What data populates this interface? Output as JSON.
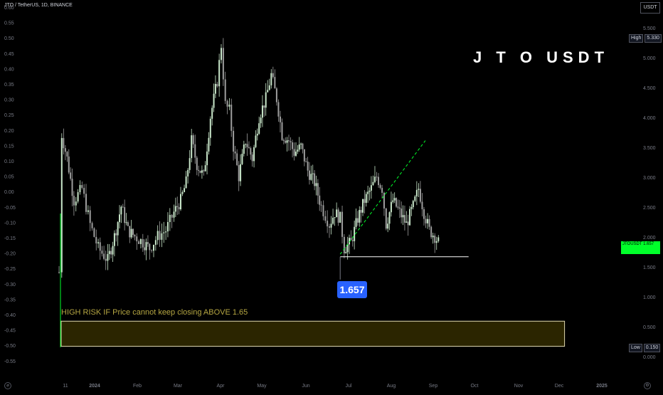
{
  "header": {
    "symbol_line": "JTO / TetherUS, 1D, BINANCE",
    "title": "J T O  USDT",
    "currency_box": "USDT"
  },
  "price_scale": {
    "high_label": "High",
    "high_value": "5.330",
    "low_label": "Low",
    "low_value": "0.150",
    "current_tag": "JTOUSDT  1.657"
  },
  "annotations": {
    "support_callout": "1.657",
    "warning_text": "HIGH RISK IF Price cannot keep closing ABOVE 1.65"
  },
  "colors": {
    "background": "#000000",
    "candle_up": "#c8e6c9",
    "candle_down": "#9e9e9e",
    "trendline": "#00ff2a",
    "support_line": "#ffffff",
    "warning_text": "#b5a642",
    "warning_box_fill": "#2b2500",
    "callout_bg": "#2962ff",
    "price_tag_bg": "#00ff2a"
  },
  "chart_data": {
    "type": "candlestick",
    "left_axis_ticks": [
      "0.60",
      "0.55",
      "0.50",
      "0.45",
      "0.40",
      "0.35",
      "0.30",
      "0.25",
      "0.20",
      "0.15",
      "0.10",
      "0.05",
      "0.00",
      "-0.05",
      "-0.10",
      "-0.15",
      "-0.20",
      "-0.25",
      "-0.30",
      "-0.35",
      "-0.40",
      "-0.45",
      "-0.50",
      "-0.55"
    ],
    "right_axis_ticks": [
      "5.500",
      "5.000",
      "4.500",
      "4.000",
      "3.500",
      "3.000",
      "2.500",
      "2.000",
      "1.500",
      "1.000",
      "0.500",
      "0.000"
    ],
    "x_tick_labels": [
      "11",
      "2024",
      "Feb",
      "Mar",
      "Apr",
      "May",
      "Jun",
      "Jul",
      "Aug",
      "Sep",
      "Oct",
      "Nov",
      "Dec",
      "2025"
    ],
    "y_range": [
      -0.45,
      5.6
    ],
    "close_path": [
      {
        "date": "2023-12-07",
        "close": 1.4
      },
      {
        "date": "2023-12-09",
        "close": 3.7
      },
      {
        "date": "2023-12-13",
        "close": 3.3
      },
      {
        "date": "2023-12-18",
        "close": 2.6
      },
      {
        "date": "2023-12-24",
        "close": 2.8
      },
      {
        "date": "2023-12-30",
        "close": 2.2
      },
      {
        "date": "2024-01-05",
        "close": 1.8
      },
      {
        "date": "2024-01-12",
        "close": 1.6
      },
      {
        "date": "2024-01-17",
        "close": 2.0
      },
      {
        "date": "2024-01-22",
        "close": 2.5
      },
      {
        "date": "2024-01-27",
        "close": 2.1
      },
      {
        "date": "2024-02-01",
        "close": 2.0
      },
      {
        "date": "2024-02-07",
        "close": 1.9
      },
      {
        "date": "2024-02-12",
        "close": 1.8
      },
      {
        "date": "2024-02-18",
        "close": 2.0
      },
      {
        "date": "2024-02-24",
        "close": 2.1
      },
      {
        "date": "2024-03-01",
        "close": 2.4
      },
      {
        "date": "2024-03-06",
        "close": 2.6
      },
      {
        "date": "2024-03-10",
        "close": 2.9
      },
      {
        "date": "2024-03-14",
        "close": 3.6
      },
      {
        "date": "2024-03-18",
        "close": 3.2
      },
      {
        "date": "2024-03-23",
        "close": 3.0
      },
      {
        "date": "2024-03-28",
        "close": 4.0
      },
      {
        "date": "2024-04-02",
        "close": 4.6
      },
      {
        "date": "2024-04-05",
        "close": 5.2
      },
      {
        "date": "2024-04-08",
        "close": 4.2
      },
      {
        "date": "2024-04-11",
        "close": 4.1
      },
      {
        "date": "2024-04-14",
        "close": 3.5
      },
      {
        "date": "2024-04-18",
        "close": 3.0
      },
      {
        "date": "2024-04-23",
        "close": 3.6
      },
      {
        "date": "2024-04-28",
        "close": 3.3
      },
      {
        "date": "2024-05-03",
        "close": 4.0
      },
      {
        "date": "2024-05-08",
        "close": 4.3
      },
      {
        "date": "2024-05-12",
        "close": 4.7
      },
      {
        "date": "2024-05-16",
        "close": 4.3
      },
      {
        "date": "2024-05-20",
        "close": 3.7
      },
      {
        "date": "2024-05-25",
        "close": 3.6
      },
      {
        "date": "2024-05-29",
        "close": 3.4
      },
      {
        "date": "2024-06-03",
        "close": 3.5
      },
      {
        "date": "2024-06-08",
        "close": 3.1
      },
      {
        "date": "2024-06-13",
        "close": 2.9
      },
      {
        "date": "2024-06-18",
        "close": 2.5
      },
      {
        "date": "2024-06-24",
        "close": 2.2
      },
      {
        "date": "2024-06-28",
        "close": 2.4
      },
      {
        "date": "2024-07-02",
        "close": 2.3
      },
      {
        "date": "2024-07-05",
        "close": 1.8
      },
      {
        "date": "2024-07-10",
        "close": 1.9
      },
      {
        "date": "2024-07-15",
        "close": 2.3
      },
      {
        "date": "2024-07-20",
        "close": 2.6
      },
      {
        "date": "2024-07-25",
        "close": 2.8
      },
      {
        "date": "2024-07-29",
        "close": 3.0
      },
      {
        "date": "2024-08-02",
        "close": 2.8
      },
      {
        "date": "2024-08-05",
        "close": 2.2
      },
      {
        "date": "2024-08-10",
        "close": 2.6
      },
      {
        "date": "2024-08-15",
        "close": 2.4
      },
      {
        "date": "2024-08-20",
        "close": 2.2
      },
      {
        "date": "2024-08-25",
        "close": 2.5
      },
      {
        "date": "2024-08-29",
        "close": 2.8
      },
      {
        "date": "2024-09-02",
        "close": 2.4
      },
      {
        "date": "2024-09-06",
        "close": 2.1
      },
      {
        "date": "2024-09-10",
        "close": 2.0
      },
      {
        "date": "2024-09-14",
        "close": 1.85
      }
    ],
    "support_line": {
      "value": 1.657,
      "from": "2024-07-02",
      "to": "2024-10-05"
    },
    "trendline": {
      "from": {
        "date": "2024-07-02",
        "value": 1.7
      },
      "to": {
        "date": "2024-09-03",
        "value": 3.6
      }
    },
    "risk_zone": {
      "from": "2023-12-07",
      "to": "2024-12-15",
      "low": 0.16,
      "high": 0.58
    }
  }
}
